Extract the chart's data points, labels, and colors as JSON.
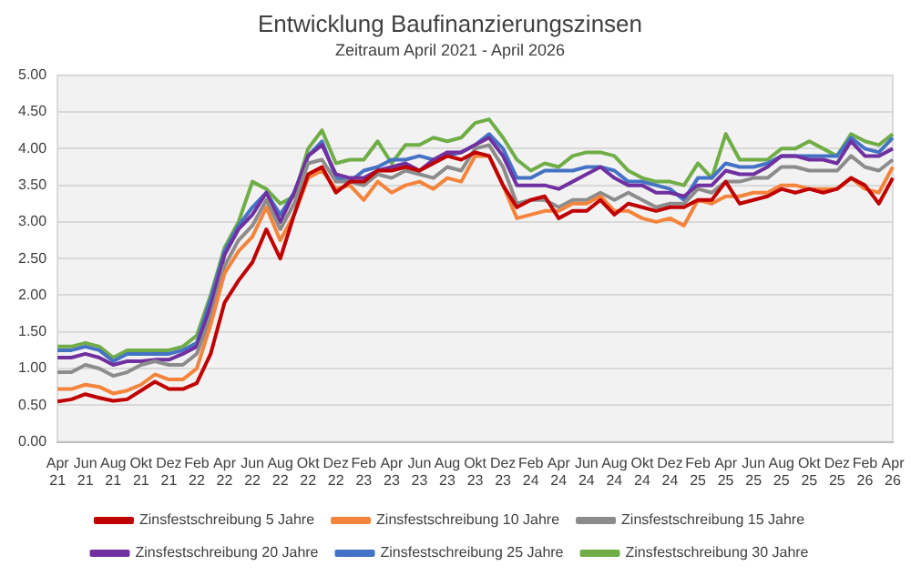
{
  "chart_data": {
    "type": "line",
    "title": "Entwicklung Baufinanzierungszinsen",
    "subtitle": "Zeitraum April 2021 - April 2026",
    "categories": [
      "Apr 21",
      null,
      "Jun 21",
      null,
      "Aug 21",
      null,
      "Okt 21",
      null,
      "Dez 21",
      null,
      "Feb 22",
      null,
      "Apr 22",
      null,
      "Jun 22",
      null,
      "Aug 22",
      null,
      "Okt 22",
      null,
      "Dez 22",
      null,
      "Feb 23",
      null,
      "Apr 23",
      null,
      "Jun 23",
      null,
      "Aug 23",
      null,
      "Okt 23",
      null,
      "Dez 23",
      null,
      "Feb 24",
      null,
      "Apr 24",
      null,
      "Jun 24",
      null,
      "Aug 24",
      null,
      "Okt 24",
      null,
      "Dez 24",
      null,
      "Feb 25",
      null,
      "Apr 25",
      null,
      "Jun 25",
      null,
      "Aug 25",
      null,
      "Okt 25",
      null,
      "Dez 25",
      null,
      "Feb 26",
      null,
      "Apr 26"
    ],
    "series": [
      {
        "name": "Zinsfestschreibung 5 Jahre",
        "color": "#c00000",
        "values": [
          0.55,
          0.58,
          0.65,
          0.6,
          0.56,
          0.58,
          0.7,
          0.82,
          0.72,
          0.72,
          0.8,
          1.2,
          1.9,
          2.2,
          2.45,
          2.9,
          2.5,
          3.1,
          3.65,
          3.75,
          3.4,
          3.55,
          3.55,
          3.7,
          3.7,
          3.75,
          3.7,
          3.8,
          3.9,
          3.85,
          3.95,
          3.9,
          3.5,
          3.2,
          3.3,
          3.35,
          3.05,
          3.15,
          3.15,
          3.3,
          3.1,
          3.25,
          3.2,
          3.15,
          3.2,
          3.2,
          3.3,
          3.3,
          3.55,
          3.25,
          3.3,
          3.35,
          3.45,
          3.4,
          3.45,
          3.4,
          3.45,
          3.6,
          3.5,
          3.25,
          3.6
        ]
      },
      {
        "name": "Zinsfestschreibung 10 Jahre",
        "color": "#f4843c",
        "values": [
          0.72,
          0.72,
          0.78,
          0.75,
          0.66,
          0.7,
          0.78,
          0.92,
          0.85,
          0.85,
          1.0,
          1.6,
          2.3,
          2.6,
          2.8,
          3.2,
          2.75,
          3.1,
          3.6,
          3.7,
          3.45,
          3.5,
          3.3,
          3.55,
          3.4,
          3.5,
          3.55,
          3.45,
          3.6,
          3.55,
          3.9,
          3.9,
          3.5,
          3.05,
          3.1,
          3.15,
          3.15,
          3.25,
          3.25,
          3.35,
          3.15,
          3.15,
          3.05,
          3.0,
          3.05,
          2.95,
          3.3,
          3.25,
          3.35,
          3.35,
          3.4,
          3.4,
          3.5,
          3.5,
          3.45,
          3.45,
          3.45,
          3.6,
          3.45,
          3.4,
          3.75
        ]
      },
      {
        "name": "Zinsfestschreibung 15 Jahre",
        "color": "#8c8c8c",
        "values": [
          0.95,
          0.95,
          1.05,
          1.0,
          0.9,
          0.95,
          1.05,
          1.1,
          1.05,
          1.05,
          1.2,
          1.7,
          2.4,
          2.75,
          2.95,
          3.3,
          2.9,
          3.25,
          3.8,
          3.85,
          3.55,
          3.55,
          3.5,
          3.65,
          3.6,
          3.7,
          3.65,
          3.6,
          3.75,
          3.7,
          4.0,
          4.05,
          3.75,
          3.25,
          3.3,
          3.3,
          3.2,
          3.3,
          3.3,
          3.4,
          3.3,
          3.4,
          3.3,
          3.2,
          3.25,
          3.25,
          3.45,
          3.4,
          3.55,
          3.55,
          3.6,
          3.6,
          3.75,
          3.75,
          3.7,
          3.7,
          3.7,
          3.9,
          3.75,
          3.7,
          3.85
        ]
      },
      {
        "name": "Zinsfestschreibung 20 Jahre",
        "color": "#7030a0",
        "values": [
          1.15,
          1.15,
          1.2,
          1.15,
          1.05,
          1.1,
          1.1,
          1.12,
          1.12,
          1.2,
          1.3,
          1.85,
          2.55,
          2.9,
          3.1,
          3.4,
          3.0,
          3.4,
          3.9,
          4.05,
          3.65,
          3.6,
          3.6,
          3.7,
          3.75,
          3.8,
          3.7,
          3.85,
          3.95,
          3.95,
          4.05,
          4.15,
          3.9,
          3.5,
          3.5,
          3.5,
          3.45,
          3.55,
          3.65,
          3.75,
          3.6,
          3.5,
          3.5,
          3.4,
          3.4,
          3.35,
          3.5,
          3.5,
          3.7,
          3.65,
          3.65,
          3.75,
          3.9,
          3.9,
          3.85,
          3.85,
          3.8,
          4.1,
          3.9,
          3.9,
          4.0
        ]
      },
      {
        "name": "Zinsfestschreibung 25 Jahre",
        "color": "#4472c4",
        "values": [
          1.25,
          1.25,
          1.3,
          1.25,
          1.1,
          1.2,
          1.2,
          1.2,
          1.2,
          1.25,
          1.35,
          1.95,
          2.6,
          2.95,
          3.2,
          3.4,
          3.1,
          3.4,
          3.9,
          4.1,
          3.6,
          3.55,
          3.7,
          3.75,
          3.85,
          3.85,
          3.9,
          3.85,
          3.9,
          3.95,
          4.05,
          4.2,
          4.0,
          3.6,
          3.6,
          3.7,
          3.7,
          3.7,
          3.75,
          3.75,
          3.7,
          3.55,
          3.55,
          3.5,
          3.45,
          3.3,
          3.6,
          3.6,
          3.8,
          3.75,
          3.75,
          3.8,
          3.9,
          3.9,
          3.9,
          3.9,
          3.9,
          4.15,
          4.0,
          3.95,
          4.15
        ]
      },
      {
        "name": "Zinsfestschreibung 30 Jahre",
        "color": "#70ad47",
        "values": [
          1.3,
          1.3,
          1.35,
          1.3,
          1.15,
          1.25,
          1.25,
          1.25,
          1.25,
          1.3,
          1.45,
          2.0,
          2.65,
          3.0,
          3.55,
          3.45,
          3.25,
          3.35,
          4.0,
          4.25,
          3.8,
          3.85,
          3.85,
          4.1,
          3.8,
          4.05,
          4.05,
          4.15,
          4.1,
          4.15,
          4.35,
          4.4,
          4.15,
          3.85,
          3.7,
          3.8,
          3.75,
          3.9,
          3.95,
          3.95,
          3.9,
          3.7,
          3.6,
          3.55,
          3.55,
          3.5,
          3.8,
          3.6,
          4.2,
          3.85,
          3.85,
          3.85,
          4.0,
          4.0,
          4.1,
          4.0,
          3.9,
          4.2,
          4.1,
          4.05,
          4.2
        ]
      }
    ],
    "ylim": [
      0,
      5
    ],
    "yticks": [
      {
        "value": 0,
        "label": "0.00"
      },
      {
        "value": 0.5,
        "label": "0.50"
      },
      {
        "value": 1,
        "label": "1.00"
      },
      {
        "value": 1.5,
        "label": "1.50"
      },
      {
        "value": 2,
        "label": "2.00"
      },
      {
        "value": 2.5,
        "label": "2.50"
      },
      {
        "value": 3,
        "label": "3.00"
      },
      {
        "value": 3.5,
        "label": "3.50"
      },
      {
        "value": 4,
        "label": "4.00"
      },
      {
        "value": 4.5,
        "label": "4.50"
      },
      {
        "value": 5,
        "label": "5.00"
      }
    ],
    "grid": "y",
    "legend": "bottom",
    "marker": "none",
    "line_style": "solid"
  }
}
